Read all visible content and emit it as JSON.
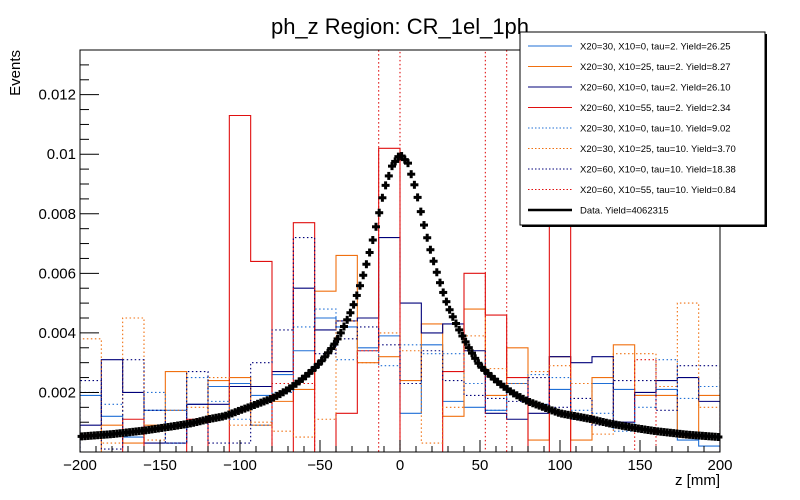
{
  "chart_data": {
    "type": "histogram",
    "title": "ph_z Region: CR_1el_1ph",
    "xlabel": "z [mm]",
    "ylabel": "Events",
    "xlim": [
      -200,
      200
    ],
    "ylim": [
      0,
      0.0135
    ],
    "bins": 30,
    "x_ticks": [
      -200,
      -150,
      -100,
      -50,
      0,
      50,
      100,
      150,
      200
    ],
    "x_tick_labels": [
      "−200",
      "−150",
      "−100",
      "−50",
      "0",
      "50",
      "100",
      "150",
      "200"
    ],
    "y_ticks": [
      0.002,
      0.004,
      0.006,
      0.008,
      0.01,
      0.012
    ],
    "y_tick_labels": [
      "0.002",
      "0.004",
      "0.006",
      "0.008",
      "0.01",
      "0.012"
    ],
    "legend_position": "top-right",
    "series": [
      {
        "name": "X20=30, X10=0, tau=2. Yield=26.25",
        "color": "#1f6fd6",
        "style": "solid",
        "values": [
          0.0019,
          0.0012,
          0.0005,
          0.0014,
          0.0014,
          0.0016,
          0.0022,
          0.0023,
          0.0019,
          0.0026,
          0.0034,
          0.0045,
          0.0042,
          0.0035,
          0.0039,
          0.0013,
          0.0036,
          0.0017,
          0.0015,
          0.0014,
          0.0023,
          0.0016,
          0.0021,
          0.0011,
          0.0023,
          0.0021,
          0.0019,
          0.0021,
          0.0004,
          0.0002
        ]
      },
      {
        "name": "X20=30, X10=25, tau=2. Yield=8.27",
        "color": "#f07010",
        "style": "solid",
        "values": [
          0.0,
          0.0009,
          0.0003,
          0.0009,
          0.0027,
          0.001,
          0.0024,
          0.0025,
          0.0009,
          0.0017,
          0.0021,
          0.0054,
          0.0066,
          0.003,
          0.0032,
          0.0024,
          0.0043,
          0.0012,
          0.0048,
          0.0019,
          0.0035,
          0.0004,
          0.0032,
          0.0004,
          0.0025,
          0.0036,
          0.0019,
          0.0019,
          0.0005,
          0.0019
        ]
      },
      {
        "name": "X20=60, X10=0, tau=2. Yield=26.10",
        "color": "#00007a",
        "style": "solid",
        "values": [
          0.0009,
          0.0031,
          0.002,
          0.0003,
          0.0003,
          0.0016,
          0.0016,
          0.0022,
          0.0022,
          0.0027,
          0.0055,
          0.0041,
          0.0044,
          0.0045,
          0.0072,
          0.005,
          0.004,
          0.0043,
          0.0034,
          0.0013,
          0.0011,
          0.0013,
          0.0032,
          0.003,
          0.0032,
          0.001,
          0.002,
          0.0024,
          0.0025,
          0.0017
        ]
      },
      {
        "name": "X20=60, X10=55, tau=2. Yield=2.34",
        "color": "#e01010",
        "style": "solid",
        "values": [
          0.0,
          0.0,
          0.0011,
          0.0,
          0.0,
          0.0011,
          0.0,
          0.0113,
          0.0064,
          0.0,
          0.0077,
          0.0,
          0.0013,
          0.0034,
          0.0102,
          0.0,
          0.0,
          0.0027,
          0.006,
          0.0046,
          0.0025,
          0.0,
          0.014,
          0.0,
          0.0,
          0.0,
          0.0,
          0.0,
          0.0,
          0.0
        ]
      },
      {
        "name": "X20=30, X10=0, tau=10. Yield=9.02",
        "color": "#1f6fd6",
        "style": "dotted",
        "values": [
          0.002,
          0.0016,
          0.0007,
          0.002,
          0.0003,
          0.0025,
          0.0017,
          0.0011,
          0.0009,
          0.002,
          0.0042,
          0.0048,
          0.0031,
          0.0034,
          0.0029,
          0.0036,
          0.0033,
          0.0033,
          0.0023,
          0.0014,
          0.0023,
          0.0026,
          0.0025,
          0.0014,
          0.0013,
          0.0007,
          0.0015,
          0.0031,
          0.0018,
          0.0022
        ]
      },
      {
        "name": "X20=30, X10=25, tau=10. Yield=3.70",
        "color": "#f07010",
        "style": "dotted",
        "values": [
          0.0038,
          0.0003,
          0.0045,
          0.0004,
          0.0014,
          0.0015,
          0.0025,
          0.0009,
          0.001,
          0.0007,
          0.0005,
          0.0011,
          0.0044,
          0.003,
          0.004,
          0.0034,
          0.0003,
          0.0015,
          0.0039,
          0.0028,
          0.0023,
          0.0027,
          0.0029,
          0.0023,
          0.0006,
          0.0033,
          0.0033,
          0.0022,
          0.005,
          0.0015
        ]
      },
      {
        "name": "X20=60, X10=0, tau=10. Yield=18.38",
        "color": "#00007a",
        "style": "dotted",
        "values": [
          0.0024,
          0.0001,
          0.0031,
          0.0014,
          0.0003,
          0.0027,
          0.0003,
          0.0003,
          0.003,
          0.0041,
          0.0072,
          0.0033,
          0.0038,
          0.0042,
          0.0036,
          0.0023,
          0.0034,
          0.0024,
          0.0019,
          0.0018,
          0.0017,
          0.0025,
          0.0015,
          0.0018,
          0.0009,
          0.0024,
          0.0024,
          0.0014,
          0.0029,
          0.0029
        ]
      },
      {
        "name": "X20=60, X10=55, tau=10. Yield=0.84",
        "color": "#e01010",
        "style": "dotted",
        "values": [
          0.0,
          0.0,
          0.0,
          0.0,
          0.0,
          0.0,
          0.0,
          0.0,
          0.0,
          0.0023,
          0.0023,
          0.0,
          0.0,
          0.0,
          0.02,
          0.0,
          0.0,
          0.0,
          0.0,
          0.02,
          0.0,
          0.0,
          0.0,
          0.0,
          0.0,
          0.0,
          0.0031,
          0.0,
          0.0,
          0.0
        ]
      },
      {
        "name": "Data. Yield=4062315",
        "color": "#000000",
        "style": "markers",
        "x": [
          -200,
          -190,
          -180,
          -170,
          -160,
          -150,
          -140,
          -130,
          -120,
          -110,
          -100,
          -90,
          -80,
          -70,
          -60,
          -50,
          -40,
          -30,
          -20,
          -10,
          -5,
          0,
          5,
          10,
          20,
          30,
          40,
          50,
          60,
          70,
          80,
          90,
          100,
          110,
          120,
          130,
          140,
          150,
          160,
          170,
          180,
          190,
          200
        ],
        "values": [
          0.00052,
          0.00056,
          0.0006,
          0.00066,
          0.00072,
          0.0008,
          0.00088,
          0.00097,
          0.0011,
          0.0012,
          0.0014,
          0.0016,
          0.0018,
          0.0021,
          0.0025,
          0.003,
          0.0037,
          0.0048,
          0.0065,
          0.0088,
          0.0096,
          0.01,
          0.0097,
          0.0088,
          0.0066,
          0.0049,
          0.0038,
          0.0029,
          0.0024,
          0.002,
          0.0017,
          0.0015,
          0.0013,
          0.0012,
          0.0011,
          0.00097,
          0.00087,
          0.00078,
          0.0007,
          0.00064,
          0.00058,
          0.00054,
          0.0005
        ]
      }
    ]
  }
}
